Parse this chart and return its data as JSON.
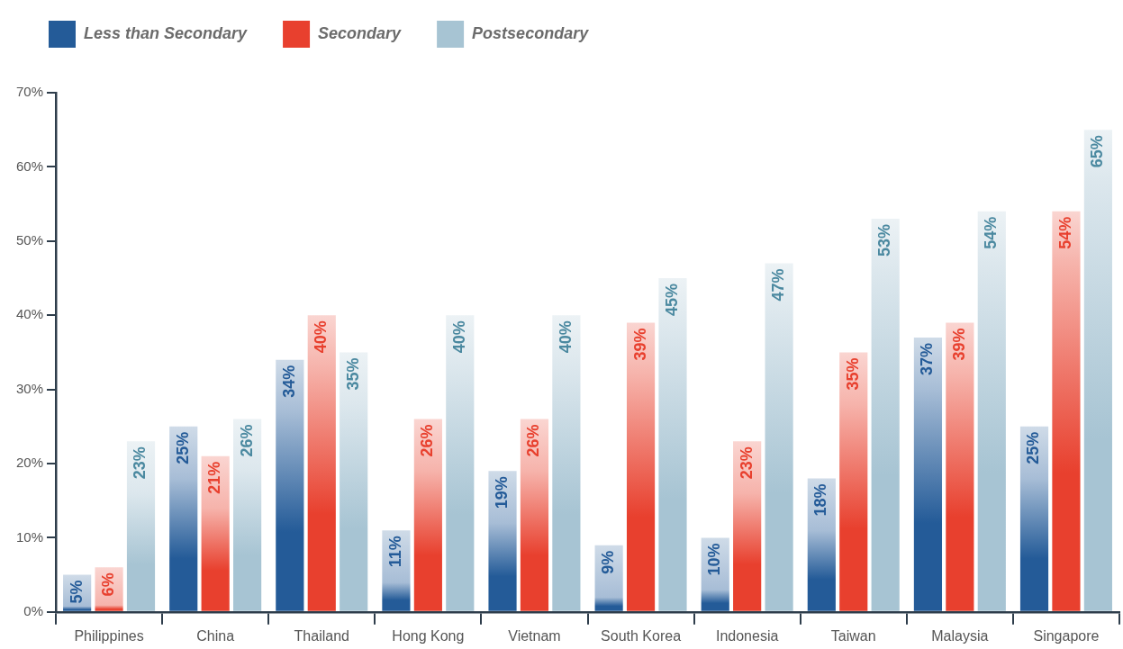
{
  "chart_data": {
    "type": "bar",
    "categories": [
      "Philippines",
      "China",
      "Thailand",
      "Hong Kong",
      "Vietnam",
      "South Korea",
      "Indonesia",
      "Taiwan",
      "Malaysia",
      "Singapore"
    ],
    "series": [
      {
        "name": "Less than Secondary",
        "color": "#245b98",
        "values": [
          5,
          25,
          34,
          11,
          19,
          9,
          10,
          18,
          37,
          25
        ],
        "value_labels": [
          "5%",
          "25%",
          "34%",
          "11%",
          "19%",
          "9%",
          "10%",
          "18%",
          "37%",
          "25%"
        ]
      },
      {
        "name": "Secondary",
        "color": "#e8402e",
        "values": [
          6,
          21,
          40,
          26,
          26,
          39,
          23,
          35,
          39,
          54
        ],
        "value_labels": [
          "6%",
          "21%",
          "40%",
          "26%",
          "26%",
          "39%",
          "23%",
          "35%",
          "39%",
          "54%"
        ]
      },
      {
        "name": "Postsecondary",
        "color": "#a7c4d3",
        "values": [
          23,
          26,
          35,
          40,
          40,
          45,
          47,
          53,
          54,
          65
        ],
        "value_labels": [
          "23%",
          "26%",
          "35%",
          "40%",
          "40%",
          "45%",
          "47%",
          "53%",
          "54%",
          "65%"
        ]
      }
    ],
    "ylim": [
      0,
      70
    ],
    "yticks": [
      {
        "value": 0,
        "label": "0%"
      },
      {
        "value": 10,
        "label": "10%"
      },
      {
        "value": 20,
        "label": "20%"
      },
      {
        "value": 30,
        "label": "30%"
      },
      {
        "value": 40,
        "label": "40%"
      },
      {
        "value": 50,
        "label": "50%"
      },
      {
        "value": 60,
        "label": "60%"
      },
      {
        "value": 70,
        "label": "70%"
      }
    ],
    "grid": false,
    "legend": "top left"
  }
}
